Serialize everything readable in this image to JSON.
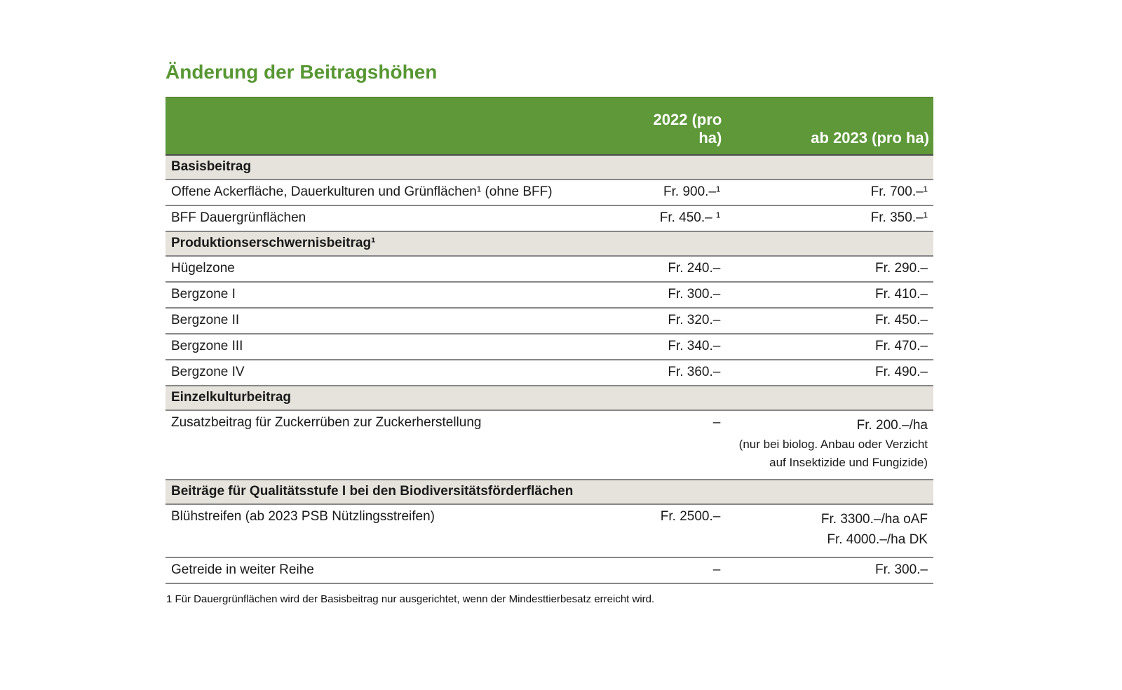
{
  "page": {
    "title": "Änderung der Beitragshöhen",
    "footnote": "1 Für Dauergrünflächen wird der Basisbeitrag nur ausgerichtet, wenn der Mindesttierbesatz erreicht wird."
  },
  "colors": {
    "accent_green": "#5e9839",
    "title_green": "#579733",
    "section_beige": "#e6e3dc",
    "row_border_gray": "#878787",
    "header_underline_dark": "#4c4c4c",
    "header_text": "#ffffff"
  },
  "table": {
    "header": {
      "col_label": "",
      "col_2022": "2022 (pro ha)",
      "col_2023": "ab 2023 (pro ha)"
    },
    "rows": [
      {
        "type": "section",
        "label": "Basisbeitrag"
      },
      {
        "type": "data",
        "label": "Offene Ackerfläche, Dauerkulturen und Grünflächen¹ (ohne BFF)",
        "v2022": "Fr. 900.–¹",
        "v2023": "Fr. 700.–¹"
      },
      {
        "type": "data",
        "label": "BFF Dauergrünflächen",
        "v2022": "Fr. 450.– ¹",
        "v2023": "Fr. 350.–¹"
      },
      {
        "type": "section",
        "label": "Produktionserschwernisbeitrag¹"
      },
      {
        "type": "data",
        "label": "Hügelzone",
        "v2022": "Fr. 240.–",
        "v2023": "Fr. 290.–"
      },
      {
        "type": "data",
        "label": "Bergzone I",
        "v2022": "Fr. 300.–",
        "v2023": "Fr. 410.–"
      },
      {
        "type": "data",
        "label": "Bergzone II",
        "v2022": "Fr. 320.–",
        "v2023": "Fr. 450.–"
      },
      {
        "type": "data",
        "label": "Bergzone III",
        "v2022": "Fr. 340.–",
        "v2023": "Fr. 470.–"
      },
      {
        "type": "data",
        "label": "Bergzone IV",
        "v2022": "Fr. 360.–",
        "v2023": "Fr. 490.–"
      },
      {
        "type": "section",
        "label": "Einzelkulturbeitrag"
      },
      {
        "type": "data",
        "label": "Zusatzbeitrag für Zuckerrüben zur Zuckerherstellung",
        "v2022": "–",
        "v2023": "Fr. 200.–/ha",
        "note_line1": "(nur bei biolog. Anbau oder Verzicht",
        "note_line2": "auf Insektizide und Fungizide)"
      },
      {
        "type": "section",
        "label": "Beiträge für Qualitätsstufe I bei den Biodiversitätsförderflächen"
      },
      {
        "type": "data",
        "label": "Blühstreifen (ab 2023 PSB Nützlingsstreifen)",
        "v2022": "Fr. 2500.–",
        "v2023_line1": "Fr. 3300.–/ha oAF",
        "v2023_line2": "Fr. 4000.–/ha DK"
      },
      {
        "type": "data",
        "label": "Getreide in weiter Reihe",
        "v2022": "–",
        "v2023": "Fr. 300.–"
      }
    ]
  }
}
